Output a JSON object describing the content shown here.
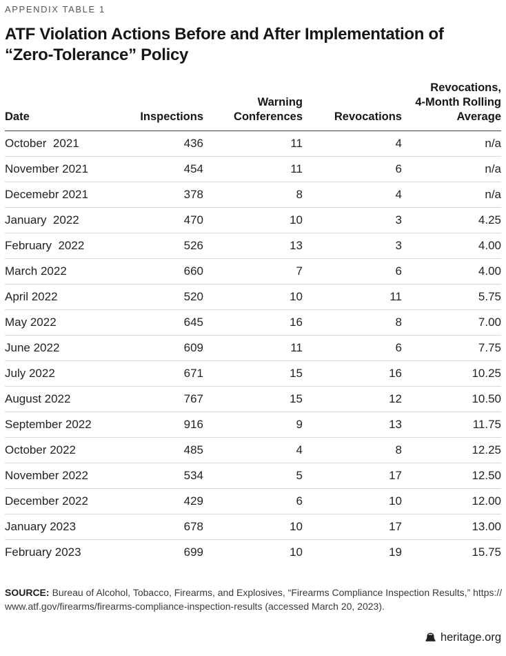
{
  "kicker": "APPENDIX TABLE 1",
  "title": {
    "line1": "ATF Violation Actions Before and After Implementation of",
    "line2": "“Zero-Tolerance” Policy"
  },
  "table": {
    "col_keys": [
      "date",
      "inspections",
      "warning-conferences",
      "revocations",
      "rolling-average"
    ],
    "headers": [
      {
        "lines": [
          "Date"
        ]
      },
      {
        "lines": [
          "Inspections"
        ]
      },
      {
        "lines": [
          "Warning",
          "Conferences"
        ]
      },
      {
        "lines": [
          "Revocations"
        ]
      },
      {
        "lines": [
          "Revocations,",
          "4-Month Rolling",
          "Average"
        ]
      }
    ],
    "na_text": "n/a"
  },
  "chart_data": {
    "type": "table",
    "title": "ATF Violation Actions Before and After Implementation of “Zero-Tolerance” Policy",
    "columns": [
      "Date",
      "Inspections",
      "Warning Conferences",
      "Revocations",
      "Revocations, 4-Month Rolling Average"
    ],
    "rows": [
      [
        "October  2021",
        436,
        11,
        4,
        null
      ],
      [
        "November 2021",
        454,
        11,
        6,
        null
      ],
      [
        "Decemebr 2021",
        378,
        8,
        4,
        null
      ],
      [
        "January  2022",
        470,
        10,
        3,
        4.25
      ],
      [
        "February  2022",
        526,
        13,
        3,
        4.0
      ],
      [
        "March 2022",
        660,
        7,
        6,
        4.0
      ],
      [
        "April 2022",
        520,
        10,
        11,
        5.75
      ],
      [
        "May 2022",
        645,
        16,
        8,
        7.0
      ],
      [
        "June 2022",
        609,
        11,
        6,
        7.75
      ],
      [
        "July 2022",
        671,
        15,
        16,
        10.25
      ],
      [
        "August 2022",
        767,
        15,
        12,
        10.5
      ],
      [
        "September 2022",
        916,
        9,
        13,
        11.75
      ],
      [
        "October 2022",
        485,
        4,
        8,
        12.25
      ],
      [
        "November 2022",
        534,
        5,
        17,
        12.5
      ],
      [
        "December 2022",
        429,
        6,
        10,
        12.0
      ],
      [
        "January 2023",
        678,
        10,
        17,
        13.0
      ],
      [
        "February 2023",
        699,
        10,
        19,
        15.75
      ]
    ]
  },
  "source": {
    "label": "SOURCE:",
    "line1": "Bureau of Alcohol, Tobacco, Firearms, and Explosives, “Firearms Compliance Inspection Results,” https://",
    "line2": "www.atf.gov/firearms/firearms-compliance-inspection-results (accessed March 20, 2023)."
  },
  "footer": {
    "site": "heritage.org"
  },
  "colors": {
    "text": "#1e1e1e",
    "kicker": "#54565a",
    "rule_dark": "#3f3f3f",
    "rule_light": "#d8d8d8"
  }
}
